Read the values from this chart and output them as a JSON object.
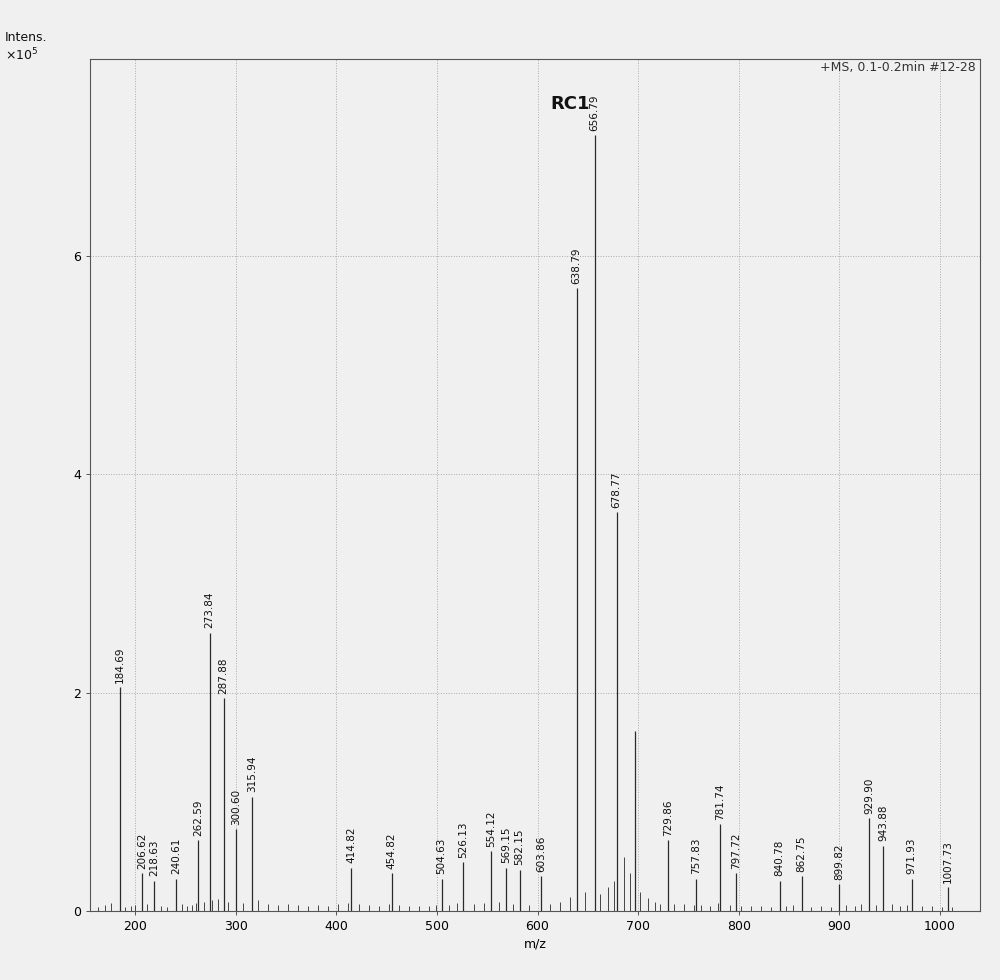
{
  "peaks": [
    {
      "mz": 184.69,
      "intensity": 2.05,
      "label": "184.69"
    },
    {
      "mz": 206.62,
      "intensity": 0.35,
      "label": "206.62"
    },
    {
      "mz": 218.63,
      "intensity": 0.28,
      "label": "218.63"
    },
    {
      "mz": 240.61,
      "intensity": 0.3,
      "label": "240.61"
    },
    {
      "mz": 262.59,
      "intensity": 0.65,
      "label": "262.59"
    },
    {
      "mz": 273.84,
      "intensity": 2.55,
      "label": "273.84"
    },
    {
      "mz": 287.88,
      "intensity": 1.95,
      "label": "287.88"
    },
    {
      "mz": 300.6,
      "intensity": 0.75,
      "label": "300.60"
    },
    {
      "mz": 315.94,
      "intensity": 1.05,
      "label": "315.94"
    },
    {
      "mz": 414.82,
      "intensity": 0.4,
      "label": "414.82"
    },
    {
      "mz": 454.82,
      "intensity": 0.35,
      "label": "454.82"
    },
    {
      "mz": 504.63,
      "intensity": 0.3,
      "label": "504.63"
    },
    {
      "mz": 526.13,
      "intensity": 0.45,
      "label": "526.13"
    },
    {
      "mz": 554.12,
      "intensity": 0.55,
      "label": "554.12"
    },
    {
      "mz": 569.15,
      "intensity": 0.4,
      "label": "569.15"
    },
    {
      "mz": 582.15,
      "intensity": 0.38,
      "label": "582.15"
    },
    {
      "mz": 603.86,
      "intensity": 0.32,
      "label": "603.86"
    },
    {
      "mz": 638.79,
      "intensity": 5.7,
      "label": "638.79"
    },
    {
      "mz": 656.79,
      "intensity": 7.1,
      "label": "656.79"
    },
    {
      "mz": 678.77,
      "intensity": 3.65,
      "label": "678.77"
    },
    {
      "mz": 697.0,
      "intensity": 1.65,
      "label": ""
    },
    {
      "mz": 729.86,
      "intensity": 0.65,
      "label": "729.86"
    },
    {
      "mz": 757.83,
      "intensity": 0.3,
      "label": "757.83"
    },
    {
      "mz": 781.74,
      "intensity": 0.8,
      "label": "781.74"
    },
    {
      "mz": 797.72,
      "intensity": 0.35,
      "label": "797.72"
    },
    {
      "mz": 840.78,
      "intensity": 0.28,
      "label": "840.78"
    },
    {
      "mz": 862.75,
      "intensity": 0.32,
      "label": "862.75"
    },
    {
      "mz": 899.82,
      "intensity": 0.25,
      "label": "899.82"
    },
    {
      "mz": 929.9,
      "intensity": 0.85,
      "label": "929.90"
    },
    {
      "mz": 943.88,
      "intensity": 0.6,
      "label": "943.88"
    },
    {
      "mz": 971.93,
      "intensity": 0.3,
      "label": "971.93"
    },
    {
      "mz": 1007.73,
      "intensity": 0.22,
      "label": "1007.73"
    }
  ],
  "noise_peaks": [
    {
      "mz": 155,
      "intensity": 0.05
    },
    {
      "mz": 163,
      "intensity": 0.04
    },
    {
      "mz": 170,
      "intensity": 0.06
    },
    {
      "mz": 176,
      "intensity": 0.08
    },
    {
      "mz": 190,
      "intensity": 0.04
    },
    {
      "mz": 196,
      "intensity": 0.05
    },
    {
      "mz": 200,
      "intensity": 0.06
    },
    {
      "mz": 212,
      "intensity": 0.07
    },
    {
      "mz": 226,
      "intensity": 0.05
    },
    {
      "mz": 232,
      "intensity": 0.04
    },
    {
      "mz": 246,
      "intensity": 0.07
    },
    {
      "mz": 251,
      "intensity": 0.05
    },
    {
      "mz": 256,
      "intensity": 0.06
    },
    {
      "mz": 260,
      "intensity": 0.08
    },
    {
      "mz": 268,
      "intensity": 0.09
    },
    {
      "mz": 276,
      "intensity": 0.1
    },
    {
      "mz": 282,
      "intensity": 0.11
    },
    {
      "mz": 292,
      "intensity": 0.09
    },
    {
      "mz": 307,
      "intensity": 0.08
    },
    {
      "mz": 322,
      "intensity": 0.1
    },
    {
      "mz": 332,
      "intensity": 0.07
    },
    {
      "mz": 342,
      "intensity": 0.06
    },
    {
      "mz": 352,
      "intensity": 0.07
    },
    {
      "mz": 362,
      "intensity": 0.06
    },
    {
      "mz": 372,
      "intensity": 0.05
    },
    {
      "mz": 382,
      "intensity": 0.06
    },
    {
      "mz": 392,
      "intensity": 0.05
    },
    {
      "mz": 402,
      "intensity": 0.07
    },
    {
      "mz": 412,
      "intensity": 0.08
    },
    {
      "mz": 422,
      "intensity": 0.07
    },
    {
      "mz": 432,
      "intensity": 0.06
    },
    {
      "mz": 442,
      "intensity": 0.05
    },
    {
      "mz": 452,
      "intensity": 0.07
    },
    {
      "mz": 462,
      "intensity": 0.06
    },
    {
      "mz": 472,
      "intensity": 0.05
    },
    {
      "mz": 482,
      "intensity": 0.05
    },
    {
      "mz": 492,
      "intensity": 0.05
    },
    {
      "mz": 499,
      "intensity": 0.06
    },
    {
      "mz": 512,
      "intensity": 0.06
    },
    {
      "mz": 520,
      "intensity": 0.08
    },
    {
      "mz": 537,
      "intensity": 0.07
    },
    {
      "mz": 547,
      "intensity": 0.08
    },
    {
      "mz": 562,
      "intensity": 0.09
    },
    {
      "mz": 576,
      "intensity": 0.07
    },
    {
      "mz": 592,
      "intensity": 0.06
    },
    {
      "mz": 612,
      "intensity": 0.07
    },
    {
      "mz": 622,
      "intensity": 0.09
    },
    {
      "mz": 632,
      "intensity": 0.13
    },
    {
      "mz": 647,
      "intensity": 0.18
    },
    {
      "mz": 662,
      "intensity": 0.16
    },
    {
      "mz": 670,
      "intensity": 0.22
    },
    {
      "mz": 676,
      "intensity": 0.28
    },
    {
      "mz": 686,
      "intensity": 0.5
    },
    {
      "mz": 692,
      "intensity": 0.35
    },
    {
      "mz": 702,
      "intensity": 0.18
    },
    {
      "mz": 710,
      "intensity": 0.12
    },
    {
      "mz": 717,
      "intensity": 0.09
    },
    {
      "mz": 722,
      "intensity": 0.07
    },
    {
      "mz": 736,
      "intensity": 0.07
    },
    {
      "mz": 746,
      "intensity": 0.07
    },
    {
      "mz": 756,
      "intensity": 0.06
    },
    {
      "mz": 763,
      "intensity": 0.06
    },
    {
      "mz": 772,
      "intensity": 0.05
    },
    {
      "mz": 779,
      "intensity": 0.08
    },
    {
      "mz": 791,
      "intensity": 0.06
    },
    {
      "mz": 802,
      "intensity": 0.05
    },
    {
      "mz": 812,
      "intensity": 0.05
    },
    {
      "mz": 822,
      "intensity": 0.05
    },
    {
      "mz": 832,
      "intensity": 0.04
    },
    {
      "mz": 847,
      "intensity": 0.05
    },
    {
      "mz": 854,
      "intensity": 0.06
    },
    {
      "mz": 872,
      "intensity": 0.04
    },
    {
      "mz": 882,
      "intensity": 0.05
    },
    {
      "mz": 892,
      "intensity": 0.04
    },
    {
      "mz": 907,
      "intensity": 0.06
    },
    {
      "mz": 916,
      "intensity": 0.05
    },
    {
      "mz": 922,
      "intensity": 0.07
    },
    {
      "mz": 937,
      "intensity": 0.06
    },
    {
      "mz": 952,
      "intensity": 0.07
    },
    {
      "mz": 960,
      "intensity": 0.05
    },
    {
      "mz": 967,
      "intensity": 0.06
    },
    {
      "mz": 982,
      "intensity": 0.05
    },
    {
      "mz": 992,
      "intensity": 0.05
    },
    {
      "mz": 1002,
      "intensity": 0.04
    },
    {
      "mz": 1012,
      "intensity": 0.04
    }
  ],
  "xlabel": "m/z",
  "yticks": [
    0,
    2,
    4,
    6
  ],
  "ylim": [
    0,
    7.8
  ],
  "xlim": [
    155,
    1040
  ],
  "xticks": [
    200,
    300,
    400,
    500,
    600,
    700,
    800,
    900,
    1000
  ],
  "annotation_label": "RC1",
  "annotation_mz": 656.79,
  "annotation_intensity": 7.1,
  "top_right_label": "+MS, 0.1-0.2min #12-28",
  "line_color": "#2a2a2a",
  "background_color": "#f0f0f0",
  "grid_color": "#aaaaaa",
  "label_fontsize": 9,
  "tick_fontsize": 9,
  "peak_label_fontsize": 7.5,
  "rc1_fontsize": 13
}
